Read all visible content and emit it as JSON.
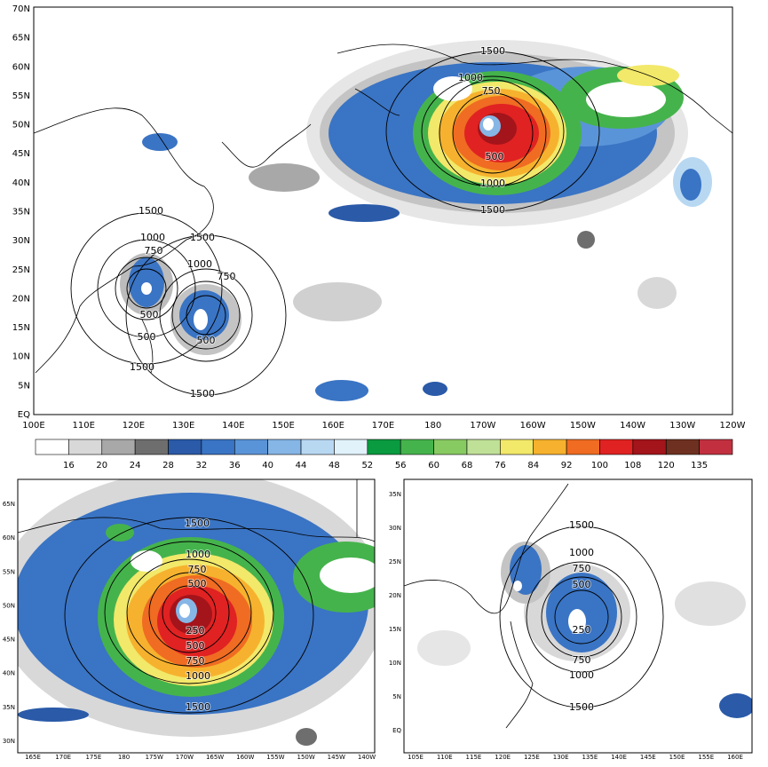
{
  "top_map": {
    "lat_labels": [
      "70N",
      "65N",
      "60N",
      "55N",
      "50N",
      "45N",
      "40N",
      "35N",
      "30N",
      "25N",
      "20N",
      "15N",
      "10N",
      "5N",
      "EQ"
    ],
    "lon_labels": [
      "100E",
      "110E",
      "120E",
      "130E",
      "140E",
      "150E",
      "160E",
      "170E",
      "180",
      "170W",
      "160W",
      "150W",
      "140W",
      "130W",
      "120W"
    ],
    "contour_labels": [
      "1500",
      "1000",
      "750",
      "500",
      "1000",
      "1500",
      "1500",
      "1000",
      "750",
      "500",
      "1500",
      "1000",
      "750",
      "500",
      "500",
      "1500",
      "1500"
    ]
  },
  "colorbar": {
    "labels": [
      "16",
      "20",
      "24",
      "28",
      "32",
      "36",
      "40",
      "44",
      "48",
      "52",
      "56",
      "60",
      "68",
      "76",
      "84",
      "92",
      "100",
      "108",
      "120",
      "135"
    ],
    "colors": [
      "#ffffff",
      "#d8d8d8",
      "#a8a8a8",
      "#6e6e6e",
      "#2a5aa8",
      "#3a74c4",
      "#5a94d8",
      "#86b6e6",
      "#b8d8f2",
      "#e2f2fb",
      "#0a9a40",
      "#45b34c",
      "#88ca62",
      "#bfe097",
      "#f2e86a",
      "#f6b22e",
      "#ef6c22",
      "#e02222",
      "#a3141b",
      "#6e3020",
      "#c23040"
    ]
  },
  "bottom_left": {
    "lat_labels": [
      "65N",
      "60N",
      "55N",
      "50N",
      "45N",
      "40N",
      "35N",
      "30N"
    ],
    "lon_labels": [
      "165E",
      "170E",
      "175E",
      "180",
      "175W",
      "170W",
      "165W",
      "160W",
      "155W",
      "150W",
      "145W",
      "140W"
    ],
    "contour_labels": [
      "1500",
      "1000",
      "750",
      "500",
      "250",
      "500",
      "750",
      "1000",
      "1500"
    ]
  },
  "bottom_right": {
    "lat_labels": [
      "35N",
      "30N",
      "25N",
      "20N",
      "15N",
      "10N",
      "5N",
      "EQ"
    ],
    "lon_labels": [
      "105E",
      "110E",
      "115E",
      "120E",
      "125E",
      "130E",
      "135E",
      "140E",
      "145E",
      "150E",
      "155E",
      "160E"
    ],
    "contour_labels": [
      "1500",
      "1000",
      "750",
      "500",
      "250",
      "750",
      "1000",
      "1500"
    ]
  }
}
